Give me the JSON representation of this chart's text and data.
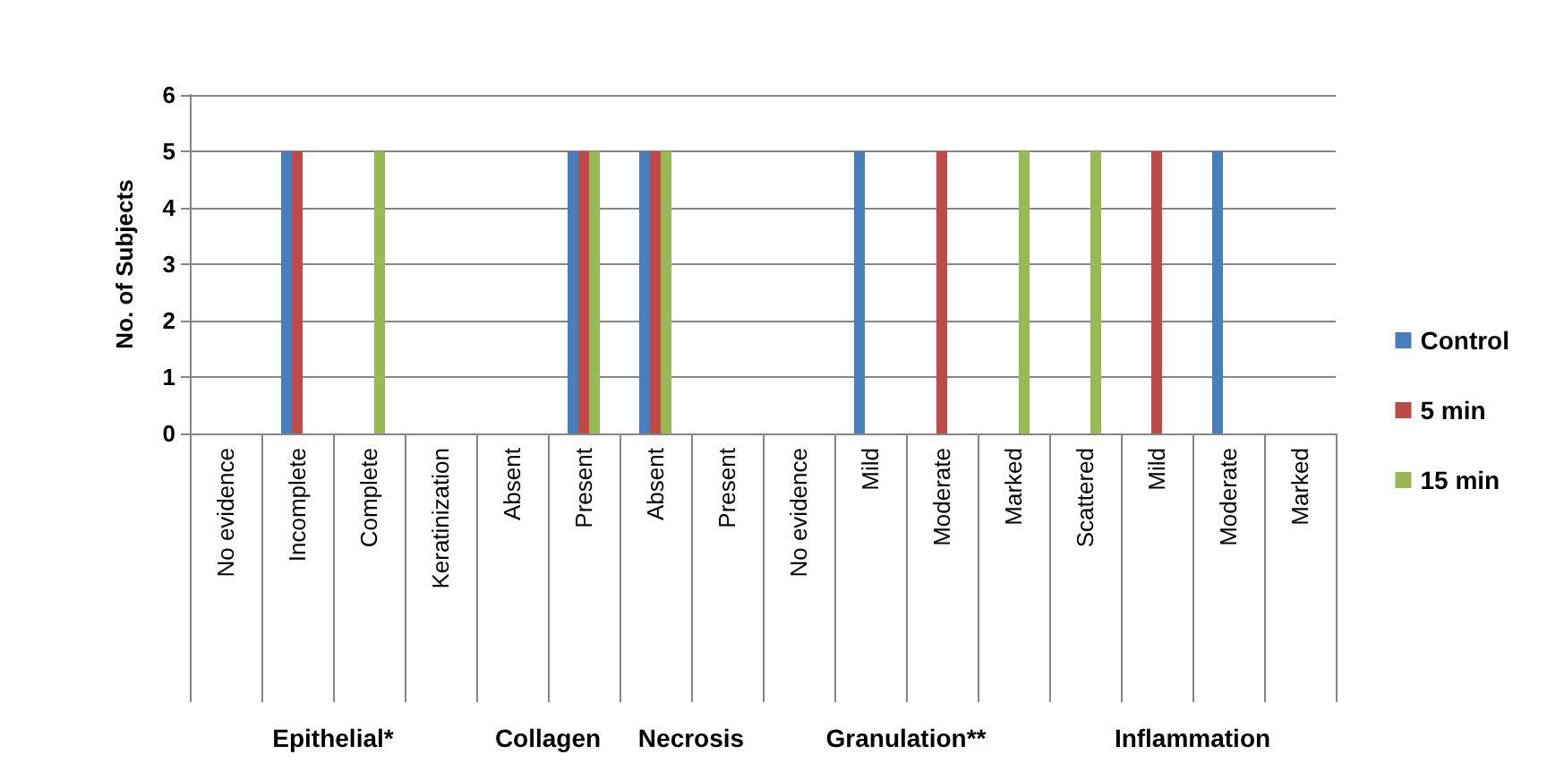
{
  "chart_data": {
    "type": "bar",
    "ylabel": "No. of Subjects",
    "categories": [
      "No evidence",
      "Incomplete",
      "Complete",
      "Keratinization",
      "Absent",
      "Present",
      "Absent",
      "Present",
      "No evidence",
      "Mild",
      "Moderate",
      "Marked",
      "Scattered",
      "Mild",
      "Moderate",
      "Marked"
    ],
    "series": [
      {
        "name": "Control",
        "color": "#4a7ebb",
        "values": [
          0,
          5,
          0,
          0,
          0,
          5,
          5,
          0,
          0,
          5,
          0,
          0,
          0,
          0,
          5,
          0
        ]
      },
      {
        "name": "5 min",
        "color": "#be4b48",
        "values": [
          0,
          5,
          0,
          0,
          0,
          5,
          5,
          0,
          0,
          0,
          5,
          0,
          0,
          5,
          0,
          0
        ]
      },
      {
        "name": "15 min",
        "color": "#98b954",
        "values": [
          0,
          0,
          5,
          0,
          0,
          5,
          5,
          0,
          0,
          0,
          0,
          5,
          5,
          0,
          0,
          0
        ]
      }
    ],
    "annotations": [
      "Epithelial*",
      "Collagen",
      "Necrosis",
      "Granulation**",
      "Inflammation"
    ],
    "ylim": [
      0,
      6
    ],
    "yticks": [
      0,
      1,
      2,
      3,
      4,
      5,
      6
    ],
    "grid": "y",
    "legend": "right"
  }
}
